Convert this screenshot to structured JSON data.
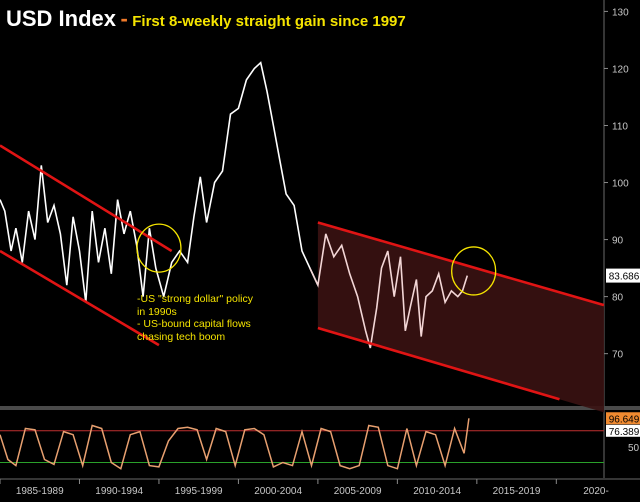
{
  "title": {
    "main": "USD Index",
    "separator": "-",
    "subtitle": "First 8-weekly straight gain since 1997"
  },
  "annotation": {
    "lines": [
      "-US \"strong dollar\" policy",
      "in 1990s",
      "- US-bound capital flows",
      "chasing tech boom"
    ]
  },
  "colors": {
    "background": "#000000",
    "price_line_early": "#ffffff",
    "price_line_recent": "#f3d6d6",
    "channel_lines": "#e01414",
    "channel_fill": "#3a1212",
    "highlight_circles": "#f5e400",
    "oscillator_line": "#e8a070",
    "oscillator_upper_band": "#c03030",
    "oscillator_lower_band": "#2aa02a",
    "last_price_label_bg": "#ffffff",
    "osc_label_bg": "#f08a30"
  },
  "chart_data": [
    {
      "type": "line",
      "title": "USD Index",
      "subtitle": "First 8-weekly straight gain since 1997",
      "x_tick_labels": [
        "1985-1989",
        "1990-1994",
        "1995-1999",
        "2000-2004",
        "2005-2009",
        "2010-2014",
        "2015-2019",
        "2020-"
      ],
      "y_tick_labels": [
        "70",
        "80",
        "90",
        "100",
        "110",
        "120",
        "130"
      ],
      "ylim": [
        61,
        132
      ],
      "xlim": [
        1985.0,
        2023.0
      ],
      "last_value_label": "83.686",
      "series": [
        {
          "x": [
            1985.0,
            1985.3,
            1985.7,
            1986.0,
            1986.4,
            1986.8,
            1987.2,
            1987.6,
            1988.0,
            1988.4,
            1988.8,
            1989.2,
            1989.6,
            1990.0,
            1990.4,
            1990.8,
            1991.2,
            1991.6,
            1992.0,
            1992.4,
            1992.8,
            1993.2,
            1993.6,
            1994.0,
            1994.4,
            1994.8,
            1995.3,
            1995.8,
            1996.3,
            1996.8,
            1997.2,
            1997.6,
            1998.0,
            1998.5,
            1999.0,
            1999.5,
            2000.0,
            2000.5,
            2001.0,
            2001.4,
            2001.8,
            2002.2,
            2002.6,
            2003.0,
            2003.5,
            2004.0,
            2004.5,
            2005.0,
            2005.5,
            2006.0,
            2006.5,
            2007.0,
            2007.5,
            2008.0,
            2008.3,
            2008.7,
            2009.0,
            2009.4,
            2009.8,
            2010.2,
            2010.5,
            2010.8,
            2011.2,
            2011.5,
            2011.8,
            2012.2,
            2012.6,
            2013.0,
            2013.4,
            2013.8,
            2014.1,
            2014.4
          ],
          "y": [
            97,
            95,
            88,
            92,
            86,
            95,
            90,
            103,
            93,
            96,
            91,
            82,
            94,
            88,
            79,
            95,
            86,
            92,
            84,
            97,
            91,
            95,
            89,
            80,
            92,
            85,
            80,
            86,
            88,
            86,
            94,
            101,
            93,
            100,
            102,
            112,
            113,
            118,
            120,
            121,
            116,
            110,
            104,
            98,
            96,
            88,
            85,
            82,
            91,
            87,
            89,
            84,
            80,
            74,
            71,
            78,
            85,
            88,
            80,
            87,
            74,
            78,
            83,
            73,
            80,
            81,
            84,
            79,
            81,
            80,
            81,
            83.686
          ]
        }
      ],
      "channels": [
        {
          "name": "channel-1980s-90s",
          "upper": [
            [
              1985.0,
              106.5
            ],
            [
              1995.8,
              88
            ]
          ],
          "lower": [
            [
              1985.0,
              88
            ],
            [
              1995.0,
              71.5
            ]
          ]
        },
        {
          "name": "channel-2005-2020",
          "upper": [
            [
              2005.0,
              93
            ],
            [
              2023.0,
              78.5
            ]
          ],
          "lower": [
            [
              2005.0,
              74.5
            ],
            [
              2020.2,
              62
            ]
          ]
        }
      ],
      "highlights": [
        {
          "x": 1995.0,
          "y": 88.5
        },
        {
          "x": 2014.8,
          "y": 84.5
        }
      ]
    },
    {
      "type": "line",
      "title": "",
      "y_tick_labels": [
        "50"
      ],
      "ylim": [
        0,
        110
      ],
      "value_labels": [
        "96.649",
        "76.389"
      ],
      "bands": {
        "upper": 76.389,
        "lower": 25
      },
      "series": [
        {
          "x": [
            1985.0,
            1985.5,
            1986.0,
            1986.6,
            1987.2,
            1987.8,
            1988.4,
            1989.0,
            1989.6,
            1990.2,
            1990.8,
            1991.4,
            1992.0,
            1992.6,
            1993.2,
            1993.8,
            1994.4,
            1995.0,
            1995.6,
            1996.2,
            1996.8,
            1997.4,
            1998.0,
            1998.6,
            1999.2,
            1999.8,
            2000.4,
            2001.0,
            2001.6,
            2002.2,
            2002.8,
            2003.4,
            2004.0,
            2004.6,
            2005.2,
            2005.8,
            2006.4,
            2007.0,
            2007.6,
            2008.2,
            2008.8,
            2009.4,
            2010.0,
            2010.6,
            2011.2,
            2011.8,
            2012.4,
            2013.0,
            2013.6,
            2014.2,
            2014.5
          ],
          "y": [
            70,
            30,
            20,
            80,
            78,
            30,
            22,
            75,
            70,
            20,
            85,
            80,
            25,
            15,
            70,
            75,
            20,
            18,
            60,
            80,
            82,
            78,
            30,
            80,
            75,
            20,
            78,
            80,
            70,
            18,
            25,
            20,
            75,
            20,
            80,
            75,
            20,
            15,
            20,
            85,
            82,
            20,
            15,
            80,
            20,
            75,
            70,
            20,
            80,
            40,
            96.649
          ]
        }
      ]
    }
  ]
}
